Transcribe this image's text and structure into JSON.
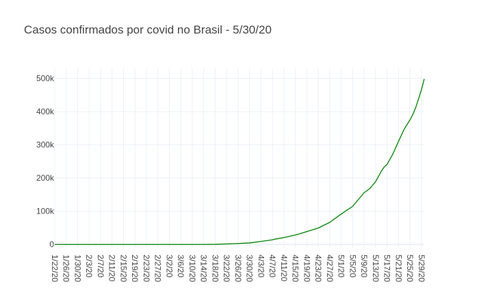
{
  "chart_data": {
    "type": "line",
    "title": "Casos confirmados por covid no Brasil - 5/30/20",
    "xlabel": "",
    "ylabel": "",
    "x_tick_labels": [
      "1/22/20",
      "1/26/20",
      "1/30/20",
      "2/3/20",
      "2/7/20",
      "2/11/20",
      "2/15/20",
      "2/19/20",
      "2/23/20",
      "2/27/20",
      "3/2/20",
      "3/6/20",
      "3/10/20",
      "3/14/20",
      "3/18/20",
      "3/22/20",
      "3/26/20",
      "3/30/20",
      "4/3/20",
      "4/7/20",
      "4/11/20",
      "4/15/20",
      "4/19/20",
      "4/23/20",
      "4/27/20",
      "5/1/20",
      "5/5/20",
      "5/9/20",
      "5/13/20",
      "5/17/20",
      "5/21/20",
      "5/25/20",
      "5/29/20"
    ],
    "y_tick_values": [
      0,
      100000,
      200000,
      300000,
      400000,
      500000
    ],
    "y_tick_labels": [
      "0",
      "100k",
      "200k",
      "300k",
      "400k",
      "500k"
    ],
    "ylim": [
      -10000,
      530000
    ],
    "grid": true,
    "color": "#008000",
    "series": [
      {
        "x": [
          "1/22/20",
          "2/26/20",
          "3/6/20",
          "3/10/20",
          "3/14/20",
          "3/18/20",
          "3/22/20",
          "3/26/20",
          "3/30/20",
          "4/3/20",
          "4/7/20",
          "4/8/20",
          "4/11/20",
          "4/15/20",
          "4/19/20",
          "4/23/20",
          "4/27/20",
          "5/1/20",
          "5/5/20",
          "5/9/20",
          "5/11/20",
          "5/13/20",
          "5/15/20",
          "5/16/20",
          "5/17/20",
          "5/19/20",
          "5/21/20",
          "5/23/20",
          "5/25/20",
          "5/26/20",
          "5/27/20",
          "5/28/20",
          "5/29/20",
          "5/30/20"
        ],
        "y": [
          0,
          1,
          13,
          34,
          121,
          428,
          1546,
          2915,
          4579,
          9056,
          14034,
          16170,
          20727,
          28320,
          38654,
          49492,
          66501,
          91589,
          114715,
          155939,
          168331,
          188974,
          220291,
          233142,
          241080,
          271628,
          310087,
          347398,
          374898,
          391222,
          411821,
          438238,
          465166,
          498440
        ]
      }
    ]
  }
}
